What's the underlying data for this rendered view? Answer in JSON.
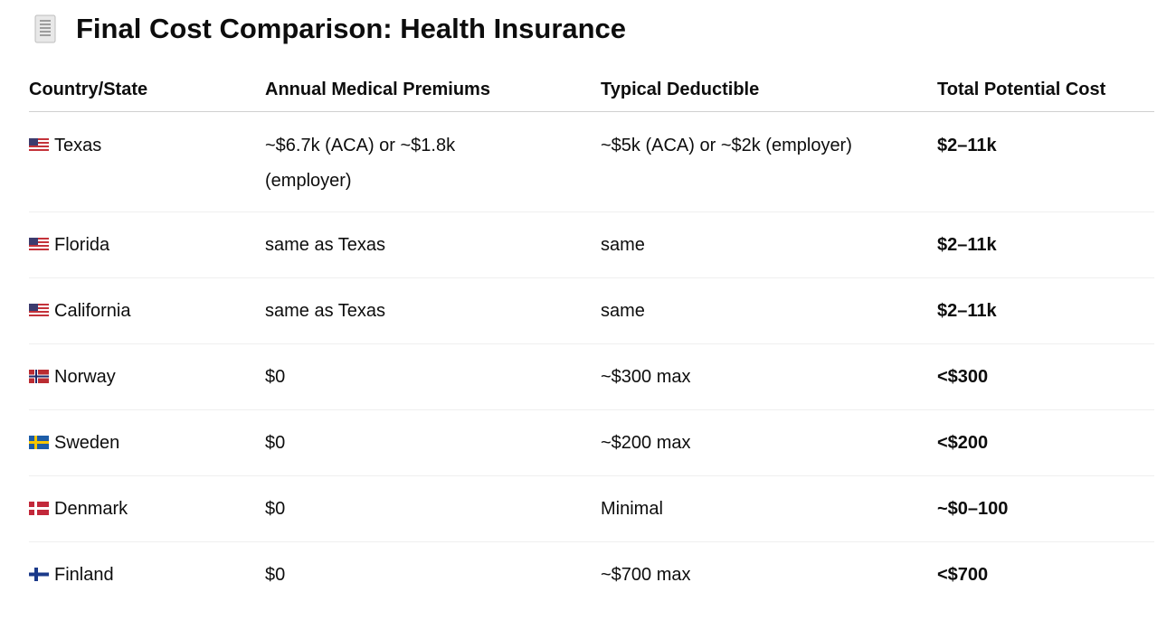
{
  "header": {
    "title": "Final Cost Comparison: Health Insurance"
  },
  "table": {
    "columns": [
      "Country/State",
      "Annual Medical Premiums",
      "Typical Deductible",
      "Total Potential Cost"
    ],
    "rows": [
      [
        "Texas",
        "~$6.7k (ACA) or ~$1.8k (employer)",
        "~$5k (ACA) or ~$2k (employer)",
        "$2–11k"
      ],
      [
        "Florida",
        "same as Texas",
        "same",
        "$2–11k"
      ],
      [
        "California",
        "same as Texas",
        "same",
        "$2–11k"
      ],
      [
        "Norway",
        "$0",
        "~$300 max",
        "<$300"
      ],
      [
        "Sweden",
        "$0",
        "~$200 max",
        "<$200"
      ],
      [
        "Denmark",
        "$0",
        "Minimal",
        "~$0–100"
      ],
      [
        "Finland",
        "$0",
        "~$700 max",
        "<$700"
      ]
    ]
  }
}
